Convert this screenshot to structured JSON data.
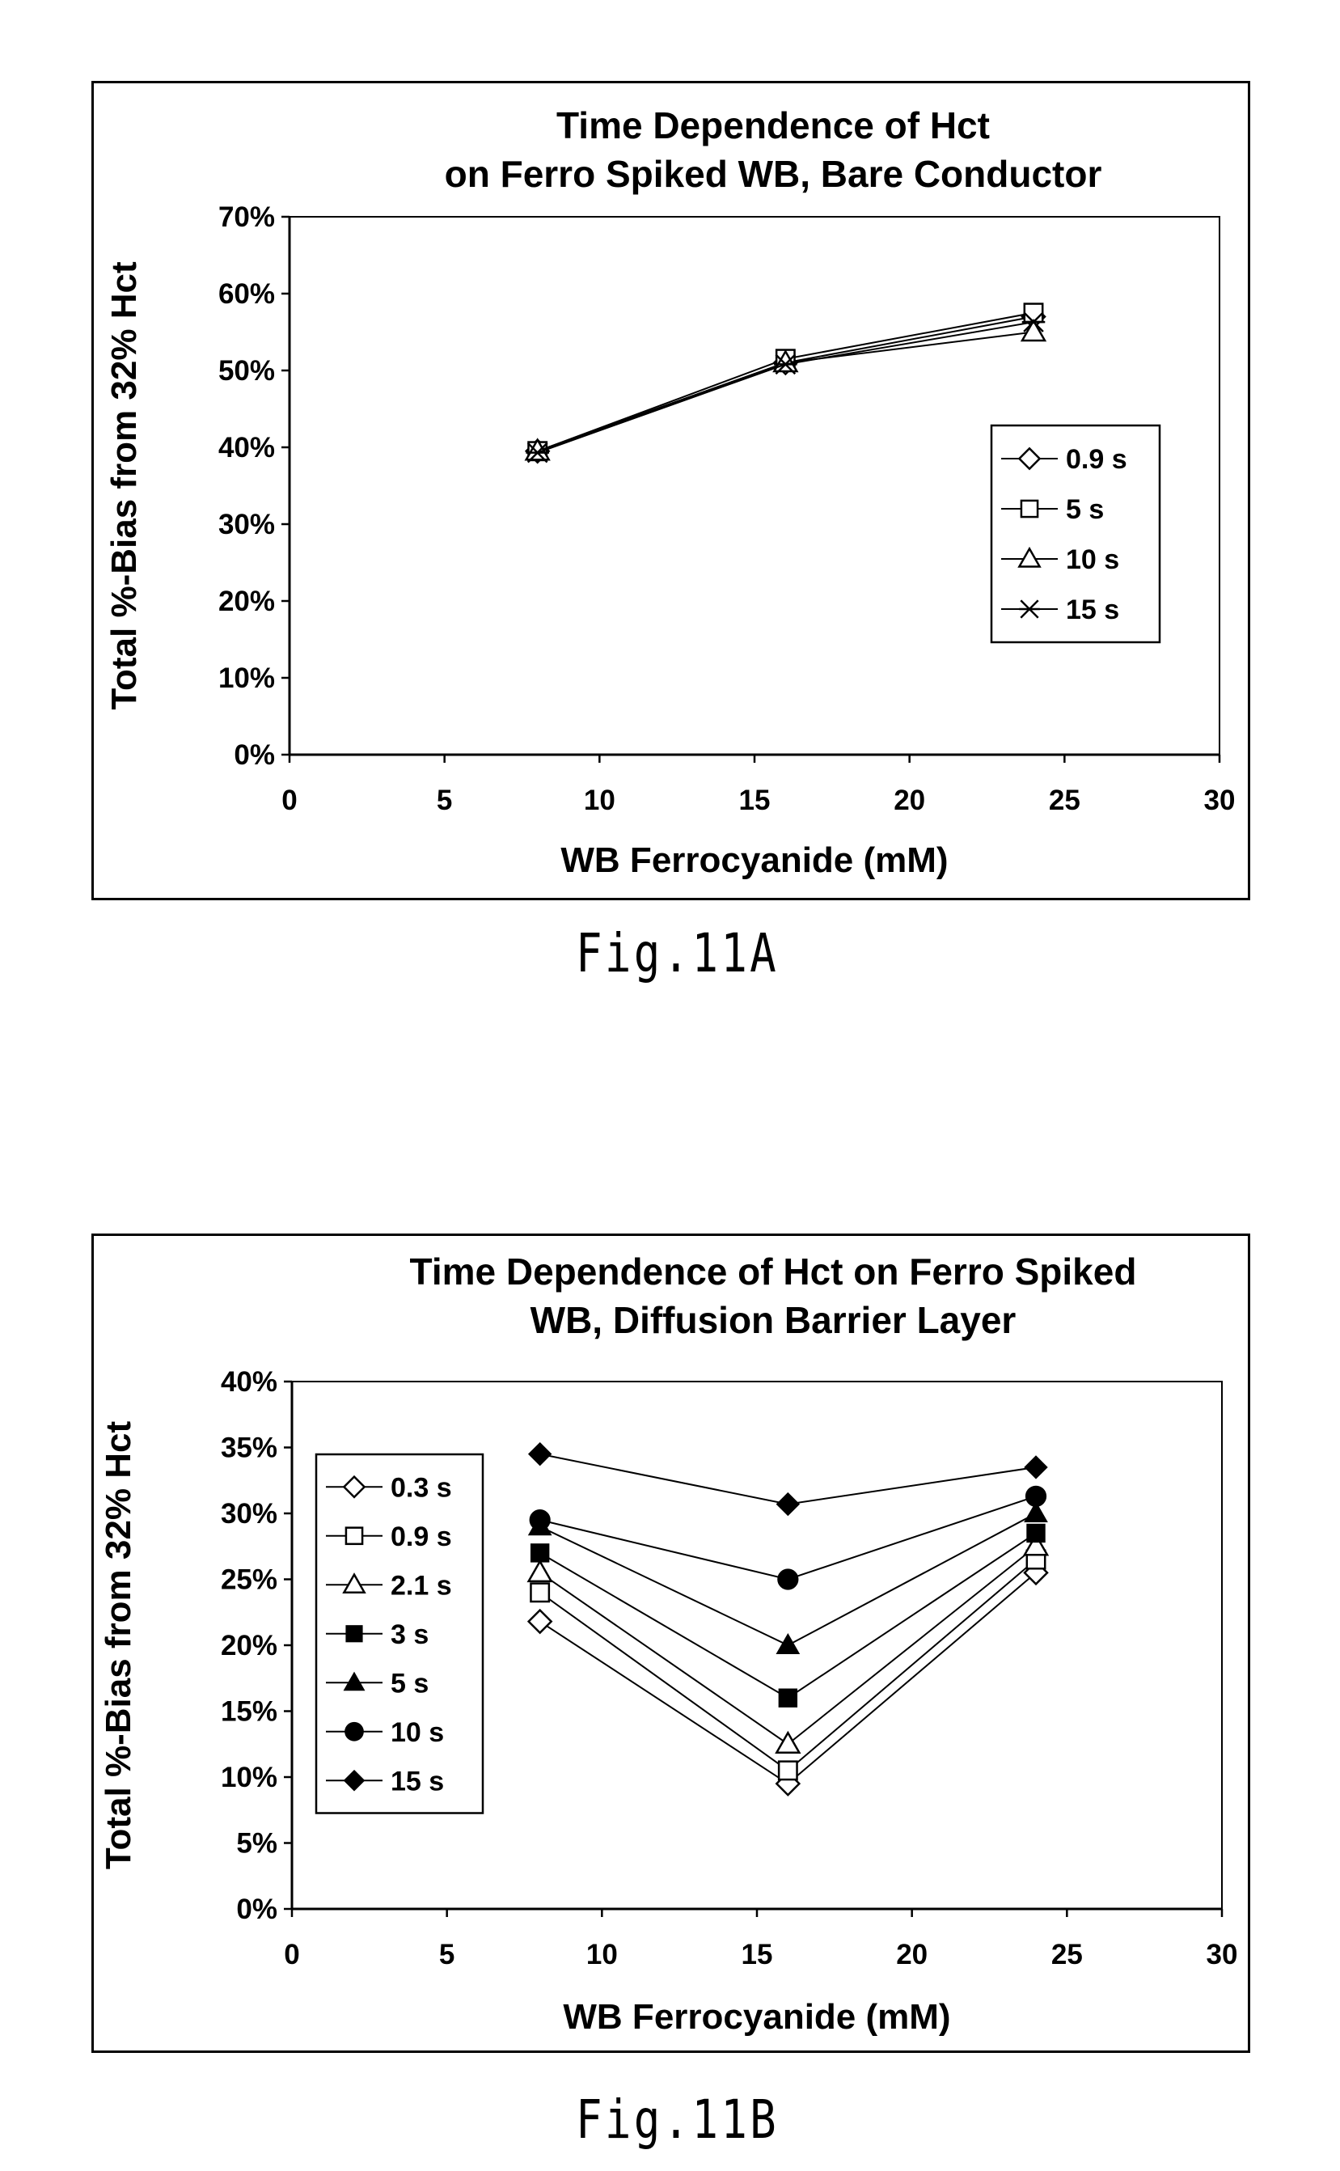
{
  "figures": [
    {
      "caption": "Fig.11A",
      "chart_data": {
        "type": "line",
        "title": [
          "Time Dependence of Hct",
          "on Ferro Spiked WB, Bare Conductor"
        ],
        "xlabel": "WB Ferrocyanide (mM)",
        "ylabel": "Total %-Bias from 32% Hct",
        "xlim": [
          0,
          30
        ],
        "ylim": [
          0,
          70
        ],
        "x_ticks": [
          "0",
          "5",
          "10",
          "15",
          "20",
          "25",
          "30"
        ],
        "y_ticks": [
          "0%",
          "10%",
          "20%",
          "30%",
          "40%",
          "50%",
          "60%",
          "70%"
        ],
        "grid": false,
        "legend_position": "right",
        "x": [
          8,
          16,
          24
        ],
        "series": [
          {
            "name": "0.9 s",
            "marker": "diamond-open",
            "values": [
              39.5,
              51.0,
              57.0
            ]
          },
          {
            "name": "5 s",
            "marker": "square-open",
            "values": [
              39.5,
              51.5,
              57.5
            ]
          },
          {
            "name": "10 s",
            "marker": "triangle-open",
            "values": [
              39.5,
              51.0,
              55.0
            ]
          },
          {
            "name": "15 s",
            "marker": "star-x",
            "values": [
              39.3,
              50.8,
              56.3
            ]
          }
        ]
      }
    },
    {
      "caption": "Fig.11B",
      "chart_data": {
        "type": "line",
        "title": [
          "Time Dependence of Hct on Ferro Spiked",
          "WB, Diffusion Barrier Layer"
        ],
        "xlabel": "WB Ferrocyanide (mM)",
        "ylabel": "Total %-Bias from 32% Hct",
        "xlim": [
          0,
          30
        ],
        "ylim": [
          0,
          40
        ],
        "x_ticks": [
          "0",
          "5",
          "10",
          "15",
          "20",
          "25",
          "30"
        ],
        "y_ticks": [
          "0%",
          "5%",
          "10%",
          "15%",
          "20%",
          "25%",
          "30%",
          "35%",
          "40%"
        ],
        "grid": false,
        "legend_position": "left",
        "x": [
          8,
          16,
          24
        ],
        "series": [
          {
            "name": "0.3 s",
            "marker": "diamond-open",
            "values": [
              21.8,
              9.5,
              25.5
            ]
          },
          {
            "name": "0.9 s",
            "marker": "square-open",
            "values": [
              24.0,
              10.5,
              26.5
            ]
          },
          {
            "name": "2.1 s",
            "marker": "triangle-open",
            "values": [
              25.5,
              12.5,
              27.5
            ]
          },
          {
            "name": "3 s",
            "marker": "square-filled",
            "values": [
              27.0,
              16.0,
              28.5
            ]
          },
          {
            "name": "5 s",
            "marker": "triangle-filled",
            "values": [
              29.0,
              20.0,
              30.0
            ]
          },
          {
            "name": "10 s",
            "marker": "circle-filled",
            "values": [
              29.5,
              25.0,
              31.3
            ]
          },
          {
            "name": "15 s",
            "marker": "diamond-filled",
            "values": [
              34.5,
              30.7,
              33.5
            ]
          }
        ]
      }
    }
  ]
}
